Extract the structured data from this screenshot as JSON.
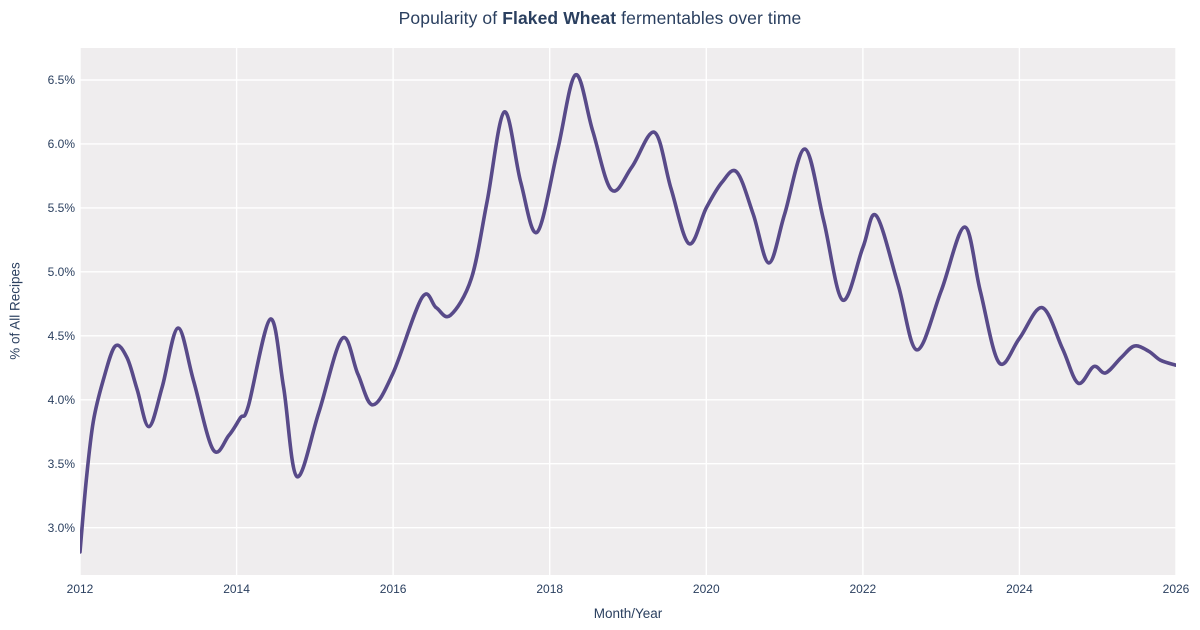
{
  "title": {
    "prefix": "Popularity of ",
    "highlight": "Flaked Wheat",
    "suffix": " fermentables over time"
  },
  "colors": {
    "line": "#584a89",
    "plot_background": "#efedee",
    "grid": "#ffffff",
    "text": "#2a3f5f",
    "figure_background": "#ffffff"
  },
  "chart_data": {
    "type": "line",
    "title": "Popularity of Flaked Wheat fermentables over time",
    "xlabel": "Month/Year",
    "ylabel": "% of All Recipes",
    "xlim": [
      2012,
      2026
    ],
    "ylim": [
      2.63,
      6.75
    ],
    "x_ticks": [
      2012,
      2014,
      2016,
      2018,
      2020,
      2022,
      2024,
      2026
    ],
    "y_ticks": [
      3.0,
      3.5,
      4.0,
      4.5,
      5.0,
      5.5,
      6.0,
      6.5
    ],
    "y_tick_suffix": "%",
    "grid": true,
    "legend": false,
    "series": [
      {
        "name": "Flaked Wheat",
        "x": [
          2012.0,
          2012.08,
          2012.17,
          2012.3,
          2012.45,
          2012.6,
          2012.73,
          2012.88,
          2013.05,
          2013.25,
          2013.45,
          2013.7,
          2013.9,
          2014.05,
          2014.15,
          2014.43,
          2014.6,
          2014.77,
          2015.05,
          2015.35,
          2015.55,
          2015.74,
          2016.0,
          2016.37,
          2016.55,
          2016.73,
          2017.0,
          2017.2,
          2017.42,
          2017.63,
          2017.84,
          2018.1,
          2018.33,
          2018.55,
          2018.79,
          2019.05,
          2019.34,
          2019.55,
          2019.78,
          2020.0,
          2020.2,
          2020.39,
          2020.6,
          2020.8,
          2021.0,
          2021.26,
          2021.5,
          2021.74,
          2022.0,
          2022.17,
          2022.45,
          2022.69,
          2023.0,
          2023.3,
          2023.5,
          2023.74,
          2024.0,
          2024.29,
          2024.55,
          2024.75,
          2024.95,
          2025.1,
          2025.3,
          2025.47,
          2025.65,
          2025.8,
          2026.0
        ],
        "y": [
          2.81,
          3.37,
          3.83,
          4.16,
          4.42,
          4.33,
          4.08,
          3.79,
          4.1,
          4.56,
          4.15,
          3.61,
          3.72,
          3.86,
          3.95,
          4.63,
          4.1,
          3.4,
          3.9,
          4.48,
          4.2,
          3.96,
          4.21,
          4.8,
          4.72,
          4.66,
          4.95,
          5.55,
          6.25,
          5.7,
          5.31,
          5.95,
          6.54,
          6.1,
          5.64,
          5.82,
          6.09,
          5.65,
          5.22,
          5.5,
          5.7,
          5.78,
          5.45,
          5.07,
          5.45,
          5.96,
          5.4,
          4.78,
          5.19,
          5.44,
          4.9,
          4.39,
          4.85,
          5.35,
          4.85,
          4.29,
          4.48,
          4.72,
          4.4,
          4.13,
          4.26,
          4.21,
          4.33,
          4.42,
          4.38,
          4.31,
          4.27
        ]
      }
    ]
  }
}
